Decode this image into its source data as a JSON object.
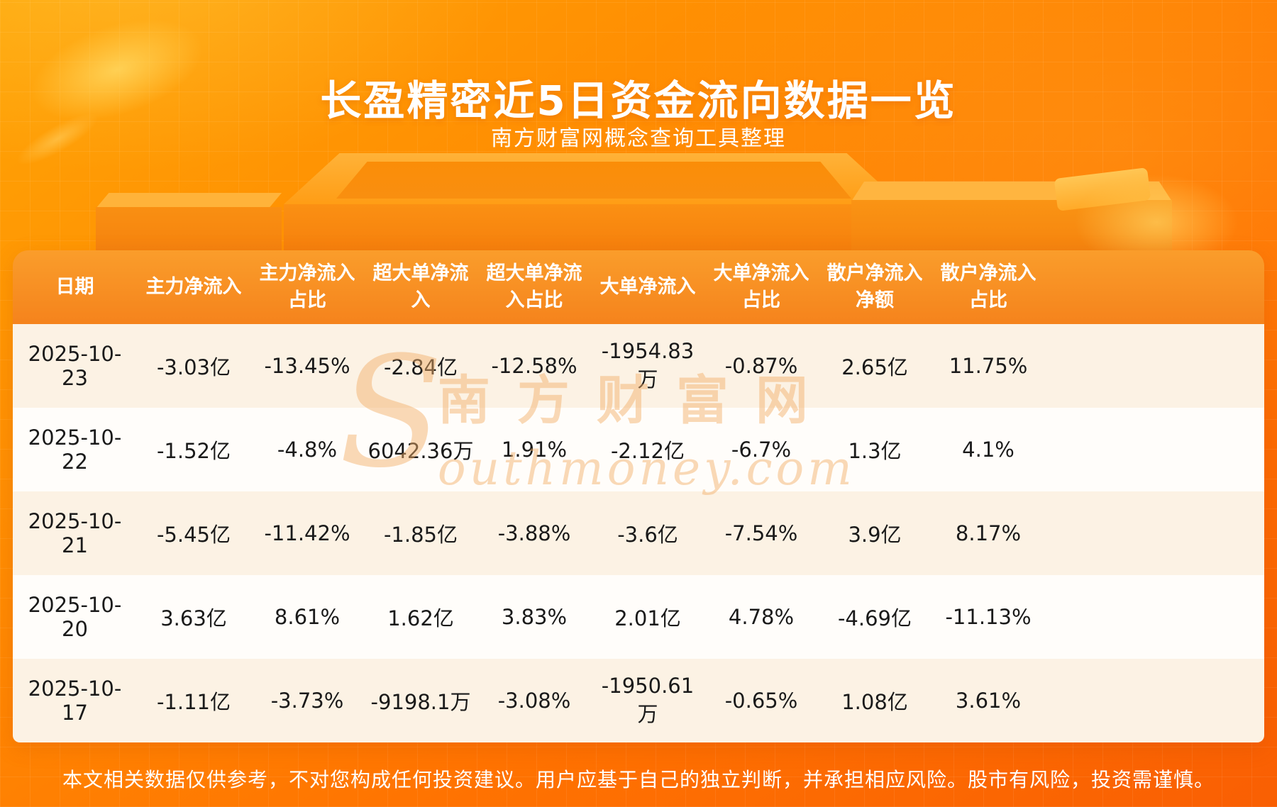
{
  "page": {
    "title": "长盈精密近5日资金流向数据一览",
    "subtitle": "南方财富网概念查询工具整理",
    "footer": "本文相关数据仅供参考，不对您构成任何投资建议。用户应基于自己的独立判断，并承担相应风险。股市有风险，投资需谨慎。"
  },
  "watermark": {
    "big_s": "S",
    "cn": "南方财富网",
    "en": "outhmoney.com"
  },
  "chart_data": {
    "type": "table",
    "title": "长盈精密近5日资金流向数据一览",
    "columns": [
      "日期",
      "主力净流入",
      "主力净流入占比",
      "超大单净流入",
      "超大单净流入占比",
      "大单净流入",
      "大单净流入占比",
      "散户净流入净额",
      "散户净流入占比"
    ],
    "rows": [
      [
        "2025-10-23",
        "-3.03亿",
        "-13.45%",
        "-2.84亿",
        "-12.58%",
        "-1954.83万",
        "-0.87%",
        "2.65亿",
        "11.75%"
      ],
      [
        "2025-10-22",
        "-1.52亿",
        "-4.8%",
        "6042.36万",
        "1.91%",
        "-2.12亿",
        "-6.7%",
        "1.3亿",
        "4.1%"
      ],
      [
        "2025-10-21",
        "-5.45亿",
        "-11.42%",
        "-1.85亿",
        "-3.88%",
        "-3.6亿",
        "-7.54%",
        "3.9亿",
        "8.17%"
      ],
      [
        "2025-10-20",
        "3.63亿",
        "8.61%",
        "1.62亿",
        "3.83%",
        "2.01亿",
        "4.78%",
        "-4.69亿",
        "-11.13%"
      ],
      [
        "2025-10-17",
        "-1.11亿",
        "-3.73%",
        "-9198.1万",
        "-3.08%",
        "-1950.61万",
        "-0.65%",
        "1.08亿",
        "3.61%"
      ]
    ]
  },
  "colors": {
    "bg_top": "#ffa405",
    "bg_mid": "#ff7301",
    "bg_bottom": "#f95f03",
    "header_top": "#fa9d2b",
    "header_bottom": "#f5831c",
    "row_cream": "#fcf2e4",
    "row_white": "#fffdfa",
    "title_text": "#ffffff",
    "cell_text": "#1a1a1a"
  }
}
